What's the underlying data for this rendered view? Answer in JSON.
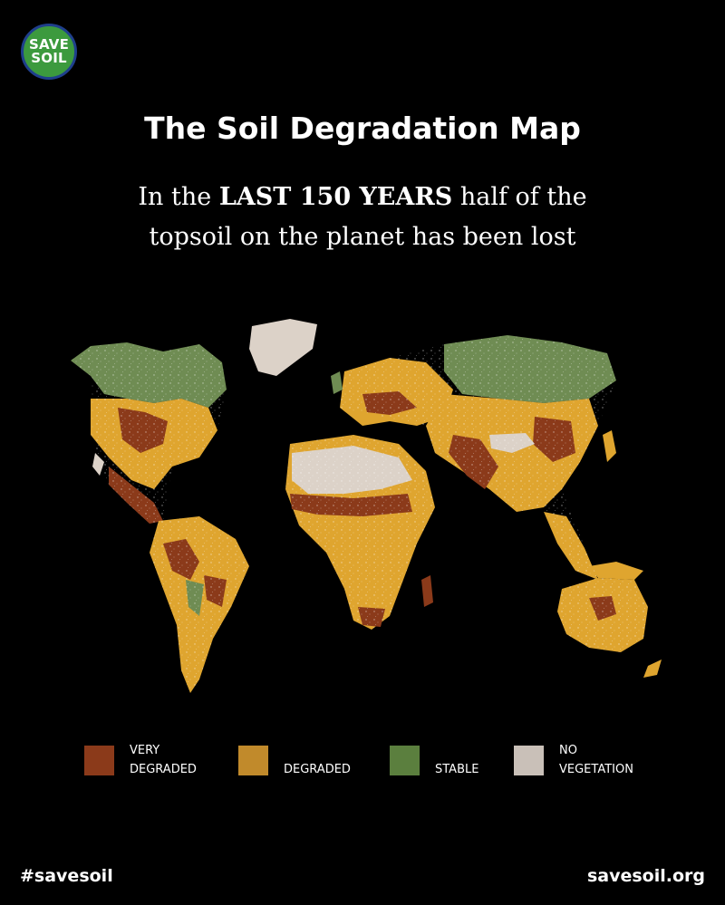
{
  "logo": {
    "line1": "SAVE",
    "line2": "SOIL"
  },
  "title": "The Soil Degradation Map",
  "subtitle": {
    "part1": "In the ",
    "emphasis": "LAST 150 YEARS",
    "part2": " half of the",
    "line2": "topsoil on the planet has been lost"
  },
  "legend": [
    {
      "label_line1": "VERY",
      "label_line2": "DEGRADED",
      "color": "#8b3a1a"
    },
    {
      "label_line1": "",
      "label_line2": "DEGRADED",
      "color": "#c18a2b"
    },
    {
      "label_line1": "",
      "label_line2": "STABLE",
      "color": "#5b7f3e"
    },
    {
      "label_line1": "NO",
      "label_line2": "VEGETATION",
      "color": "#c9c0b8"
    }
  ],
  "colors": {
    "very_degraded": "#8b3a1a",
    "degraded": "#dfa52f",
    "stable": "#6f8c53",
    "no_vegetation": "#dcd2c8"
  },
  "footer": {
    "hashtag": "#savesoil",
    "website": "savesoil.org"
  }
}
